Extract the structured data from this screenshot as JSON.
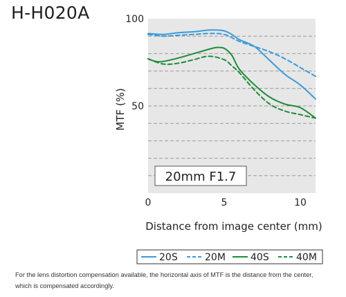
{
  "header": {
    "lens_model": "H-H020A"
  },
  "plot_label": "20mm F1.7",
  "footnote": {
    "line1": "For the lens distortion compensation available, the horizontal axis of MTF is the distance from the center,",
    "line2": "which is compensated accordingly."
  },
  "colors": {
    "sagittal_20": "#3a9ad9",
    "sagittal_40": "#1e8a3c",
    "plot_bg": "#e7e7e7",
    "grid": "#9a9a9a"
  },
  "chart_data": {
    "type": "line",
    "title": "",
    "xlabel": "Distance from image center (mm)",
    "ylabel": "MTF (%)",
    "xlim": [
      0,
      11
    ],
    "ylim": [
      0,
      100
    ],
    "xticks": [
      "0",
      "5",
      "10"
    ],
    "yticks": [
      "50",
      "100"
    ],
    "grid": "horizontal dashed every 10%",
    "legend_position": "bottom",
    "series": [
      {
        "name": "20S",
        "style": "solid",
        "color": "#3a9ad9",
        "x": [
          0,
          1,
          2,
          3,
          4,
          4.5,
          5,
          5.5,
          6,
          7,
          8,
          9,
          10,
          11
        ],
        "y": [
          91.5,
          91,
          92,
          92.5,
          93.5,
          93.5,
          93,
          91,
          88,
          84,
          76,
          68,
          62,
          54
        ]
      },
      {
        "name": "20M",
        "style": "dashed",
        "color": "#3a9ad9",
        "x": [
          0,
          1,
          2,
          3,
          4,
          5,
          6,
          7,
          8,
          9,
          10,
          11
        ],
        "y": [
          91,
          90,
          90.5,
          91,
          91.5,
          91,
          87,
          84,
          81,
          77,
          72,
          67
        ]
      },
      {
        "name": "40S",
        "style": "solid",
        "color": "#1e8a3c",
        "x": [
          0,
          0.5,
          1,
          2,
          3,
          4,
          4.5,
          5,
          5.5,
          6,
          7,
          8,
          9,
          10,
          11
        ],
        "y": [
          77,
          75.5,
          75.5,
          77.5,
          80,
          82.5,
          83.5,
          83,
          79,
          71,
          62,
          55,
          51,
          49,
          43
        ]
      },
      {
        "name": "40M",
        "style": "dashed",
        "color": "#1e8a3c",
        "x": [
          0,
          1,
          2,
          3,
          4,
          5,
          5.5,
          6,
          7,
          8,
          9,
          10,
          11
        ],
        "y": [
          77,
          74,
          74.5,
          76.5,
          78.5,
          76.5,
          73,
          69,
          59,
          51,
          47,
          45,
          43
        ]
      }
    ]
  }
}
